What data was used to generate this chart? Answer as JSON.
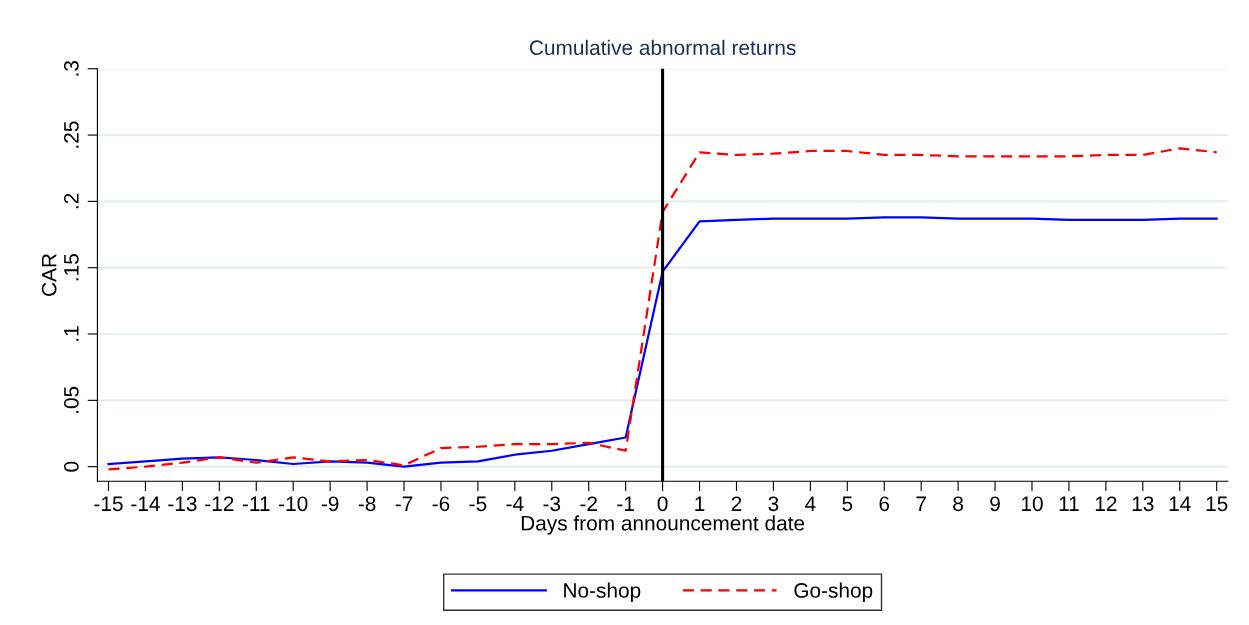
{
  "chart_data": {
    "type": "line",
    "title": "Cumulative abnormal returns",
    "xlabel": "Days from announcement date",
    "ylabel": "CAR",
    "x": [
      -15,
      -14,
      -13,
      -12,
      -11,
      -10,
      -9,
      -8,
      -7,
      -6,
      -5,
      -4,
      -3,
      -2,
      -1,
      0,
      1,
      2,
      3,
      4,
      5,
      6,
      7,
      8,
      9,
      10,
      11,
      12,
      13,
      14,
      15
    ],
    "series": [
      {
        "name": "No-shop",
        "color": "#0000ff",
        "line_style": "solid",
        "values": [
          0.002,
          0.004,
          0.006,
          0.007,
          0.005,
          0.002,
          0.004,
          0.003,
          0.0,
          0.003,
          0.004,
          0.009,
          0.012,
          0.017,
          0.022,
          0.147,
          0.185,
          0.186,
          0.187,
          0.187,
          0.187,
          0.188,
          0.188,
          0.187,
          0.187,
          0.187,
          0.186,
          0.186,
          0.186,
          0.187,
          0.187
        ]
      },
      {
        "name": "Go-shop",
        "color": "#ff0000",
        "line_style": "dashed",
        "values": [
          -0.002,
          0.0,
          0.003,
          0.007,
          0.003,
          0.007,
          0.004,
          0.005,
          0.001,
          0.014,
          0.015,
          0.017,
          0.017,
          0.018,
          0.012,
          0.192,
          0.237,
          0.235,
          0.236,
          0.238,
          0.238,
          0.235,
          0.235,
          0.234,
          0.234,
          0.234,
          0.234,
          0.235,
          0.235,
          0.24,
          0.237
        ]
      }
    ],
    "xlim": [
      -15.3,
      15.3
    ],
    "xticks": [
      -15,
      -14,
      -13,
      -12,
      -11,
      -10,
      -9,
      -8,
      -7,
      -6,
      -5,
      -4,
      -3,
      -2,
      -1,
      0,
      1,
      2,
      3,
      4,
      5,
      6,
      7,
      8,
      9,
      10,
      11,
      12,
      13,
      14,
      15
    ],
    "ylim": [
      -0.011,
      0.3
    ],
    "yticks": [
      {
        "value": 0,
        "label": "0"
      },
      {
        "value": 0.05,
        "label": ".05"
      },
      {
        "value": 0.1,
        "label": ".1"
      },
      {
        "value": 0.15,
        "label": ".15"
      },
      {
        "value": 0.2,
        "label": ".2"
      },
      {
        "value": 0.25,
        "label": ".25"
      },
      {
        "value": 0.3,
        "label": ".3"
      }
    ],
    "ref_lines": [
      {
        "axis": "x",
        "value": 0,
        "color": "#000000",
        "line_style": "solid"
      }
    ],
    "grid": "y",
    "legend": "bottom",
    "marker": "none"
  }
}
